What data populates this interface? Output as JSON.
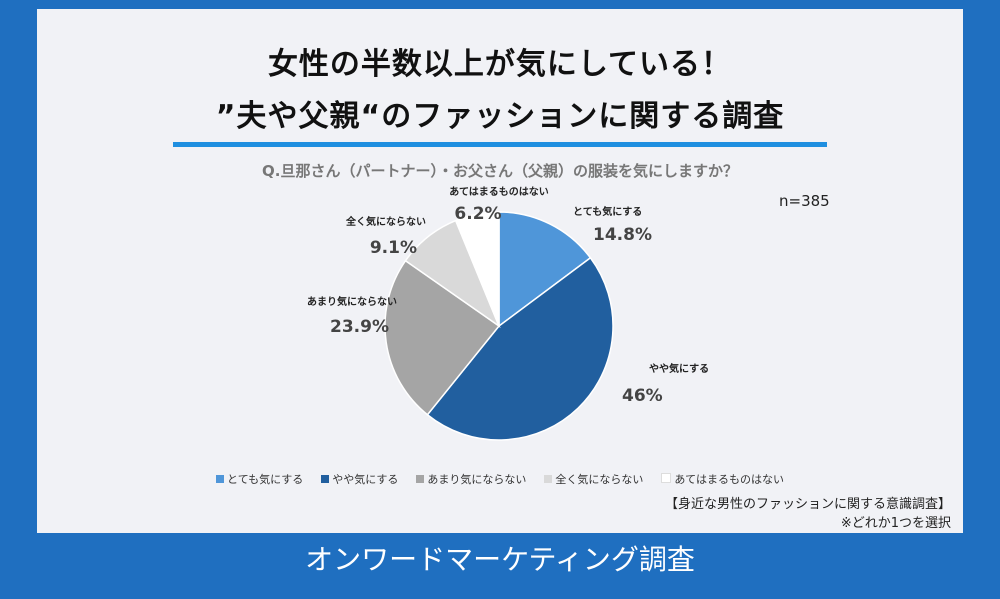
{
  "header": {
    "title_line1": "女性の半数以上が気にしている！",
    "title_line2": "”夫や父親“のファッションに関する調査"
  },
  "question": "Q.旦那さん（パートナー）・お父さん（父親）の服装を気にしますか？",
  "sample_size": "n=385",
  "source_line1": "【身近な男性のファッションに関する意識調査】",
  "source_line2": "※どれか1つを選択",
  "footer": "オンワードマーケティング調査",
  "chart_data": {
    "type": "pie",
    "title": "",
    "slices": [
      {
        "label": "とても気にする",
        "value": 14.8,
        "value_label": "14.8%",
        "color": "#4f96d9"
      },
      {
        "label": "やや気にする",
        "value": 46.0,
        "value_label": "46%",
        "color": "#215f9f"
      },
      {
        "label": "あまり気にならない",
        "value": 23.9,
        "value_label": "23.9%",
        "color": "#a5a5a5"
      },
      {
        "label": "全く気にならない",
        "value": 9.1,
        "value_label": "9.1%",
        "color": "#d9d9d9"
      },
      {
        "label": "あてはまるものはない",
        "value": 6.2,
        "value_label": "6.2%",
        "color": "#ffffff"
      }
    ],
    "legend_placement": "bottom"
  }
}
